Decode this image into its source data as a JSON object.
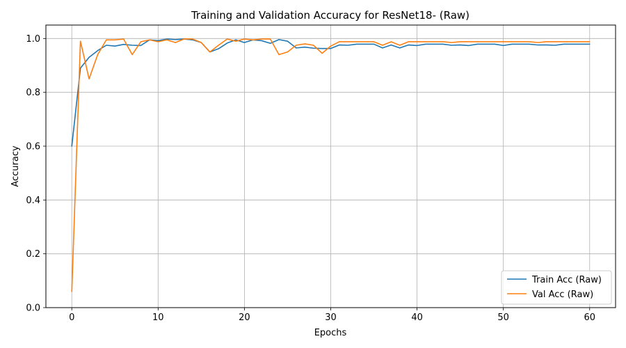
{
  "chart_data": {
    "type": "line",
    "title": "Training and Validation Accuracy for ResNet18- (Raw)",
    "xlabel": "Epochs",
    "ylabel": "Accuracy",
    "xlim": [
      -3,
      63
    ],
    "ylim": [
      0.0,
      1.05
    ],
    "xticks": [
      0,
      10,
      20,
      30,
      40,
      50,
      60
    ],
    "yticks": [
      0.0,
      0.2,
      0.4,
      0.6,
      0.8,
      1.0
    ],
    "grid": true,
    "legend_position": "lower-right",
    "x": [
      0,
      1,
      2,
      3,
      4,
      5,
      6,
      7,
      8,
      9,
      10,
      11,
      12,
      13,
      14,
      15,
      16,
      17,
      18,
      19,
      20,
      21,
      22,
      23,
      24,
      25,
      26,
      27,
      28,
      29,
      30,
      31,
      32,
      33,
      34,
      35,
      36,
      37,
      38,
      39,
      40,
      41,
      42,
      43,
      44,
      45,
      46,
      47,
      48,
      49,
      50,
      51,
      52,
      53,
      54,
      55,
      56,
      57,
      58,
      59,
      60
    ],
    "series": [
      {
        "name": "Train Acc (Raw)",
        "color": "#1f77b4",
        "values": [
          0.6,
          0.89,
          0.93,
          0.955,
          0.975,
          0.972,
          0.978,
          0.975,
          0.974,
          0.995,
          0.992,
          0.998,
          0.996,
          0.998,
          0.995,
          0.985,
          0.95,
          0.962,
          0.983,
          0.995,
          0.985,
          0.995,
          0.992,
          0.982,
          0.996,
          0.99,
          0.965,
          0.968,
          0.964,
          0.963,
          0.963,
          0.976,
          0.975,
          0.979,
          0.979,
          0.979,
          0.965,
          0.976,
          0.965,
          0.976,
          0.974,
          0.979,
          0.979,
          0.979,
          0.975,
          0.976,
          0.974,
          0.979,
          0.979,
          0.979,
          0.974,
          0.979,
          0.979,
          0.979,
          0.976,
          0.976,
          0.975,
          0.979,
          0.979,
          0.979,
          0.979
        ]
      },
      {
        "name": "Val Acc (Raw)",
        "color": "#ff7f0e",
        "values": [
          0.06,
          0.99,
          0.85,
          0.94,
          0.995,
          0.995,
          0.998,
          0.94,
          0.988,
          0.995,
          0.988,
          0.995,
          0.985,
          0.998,
          0.998,
          0.985,
          0.95,
          0.975,
          0.998,
          0.99,
          0.998,
          0.995,
          0.998,
          0.998,
          0.94,
          0.95,
          0.975,
          0.98,
          0.975,
          0.945,
          0.972,
          0.988,
          0.988,
          0.988,
          0.988,
          0.988,
          0.975,
          0.988,
          0.975,
          0.988,
          0.988,
          0.988,
          0.988,
          0.988,
          0.985,
          0.988,
          0.988,
          0.988,
          0.988,
          0.988,
          0.988,
          0.988,
          0.988,
          0.988,
          0.985,
          0.988,
          0.988,
          0.988,
          0.988,
          0.988,
          0.988
        ]
      }
    ]
  }
}
